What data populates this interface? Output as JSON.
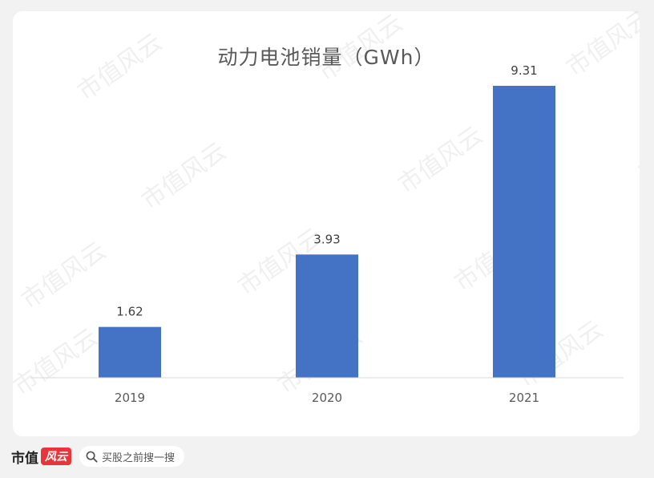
{
  "chart_data": {
    "type": "bar",
    "title": "动力电池销量（GWh）",
    "categories": [
      "2019",
      "2020",
      "2021"
    ],
    "values": [
      1.62,
      3.93,
      9.31
    ],
    "data_labels": [
      "1.62",
      "3.93",
      "9.31"
    ],
    "xlabel": "",
    "ylabel": "",
    "ylim": [
      0,
      10
    ],
    "grid": false,
    "bar_color": "#4472c4"
  },
  "watermark": {
    "text": "市值风云"
  },
  "footer": {
    "brand": "市值",
    "brand_badge": "风云",
    "search_text": "买股之前搜一搜"
  },
  "colors": {
    "background": "#f2f2f2",
    "panel": "#ffffff",
    "axis": "#d9d9d9",
    "label": "#595959",
    "badge": "#e8353b"
  }
}
